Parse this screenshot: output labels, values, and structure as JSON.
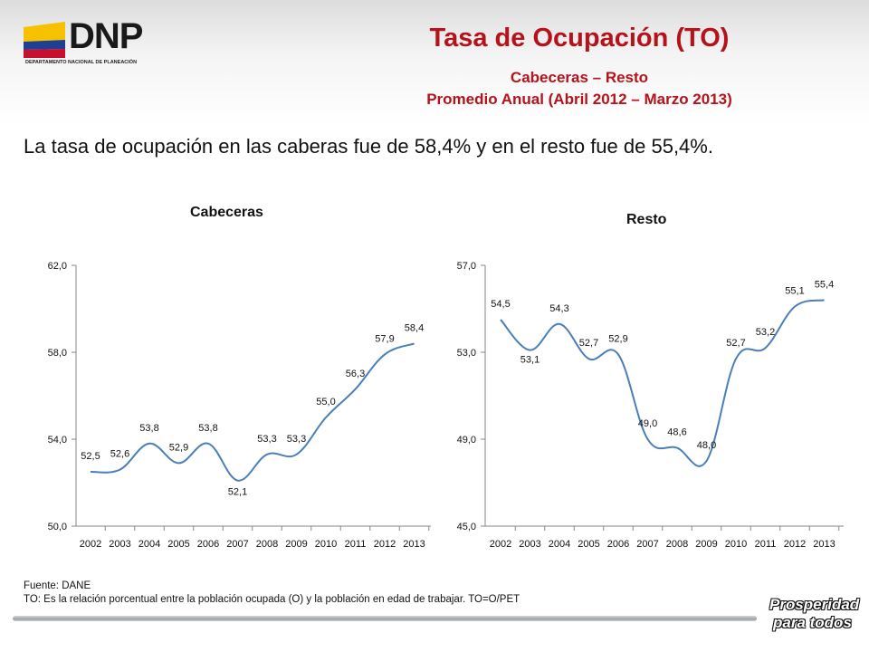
{
  "header": {
    "logo_text": "DNP",
    "logo_subtext": "DEPARTAMENTO NACIONAL DE PLANEACIÓN",
    "title": "Tasa de Ocupación (TO)",
    "subtitle1": "Cabeceras – Resto",
    "subtitle2": "Promedio Anual (Abril 2012 – Marzo 2013)"
  },
  "summary": "La tasa de ocupación en las caberas fue de 58,4% y en el resto fue de 55,4%.",
  "colors": {
    "title": "#b5121b",
    "line": "#4a7ebb",
    "axis": "#868686"
  },
  "chart_data": [
    {
      "type": "line",
      "title": "Cabeceras",
      "categories": [
        "2002",
        "2003",
        "2004",
        "2005",
        "2006",
        "2007",
        "2008",
        "2009",
        "2010",
        "2011",
        "2012",
        "2013"
      ],
      "values": [
        52.5,
        52.6,
        53.8,
        52.9,
        53.8,
        52.1,
        53.3,
        53.3,
        55.0,
        56.3,
        57.9,
        58.4
      ],
      "labels": [
        "52,5",
        "52,6",
        "53,8",
        "52,9",
        "53,8",
        "52,1",
        "53,3",
        "53,3",
        "55,0",
        "56,3",
        "57,9",
        "58,4"
      ],
      "ylim": [
        50,
        62
      ],
      "yticks": [
        50,
        54,
        58,
        62
      ],
      "ytick_labels": [
        "50,0",
        "54,0",
        "58,0",
        "62,0"
      ],
      "grid": false
    },
    {
      "type": "line",
      "title": "Resto",
      "categories": [
        "2002",
        "2003",
        "2004",
        "2005",
        "2006",
        "2007",
        "2008",
        "2009",
        "2010",
        "2011",
        "2012",
        "2013"
      ],
      "values": [
        54.5,
        53.1,
        54.3,
        52.7,
        52.9,
        49.0,
        48.6,
        48.0,
        52.7,
        53.2,
        55.1,
        55.4
      ],
      "labels": [
        "54,5",
        "53,1",
        "54,3",
        "52,7",
        "52,9",
        "49,0",
        "48,6",
        "48,0",
        "52,7",
        "53,2",
        "55,1",
        "55,4"
      ],
      "ylim": [
        45,
        57
      ],
      "yticks": [
        45,
        49,
        53,
        57
      ],
      "ytick_labels": [
        "45,0",
        "49,0",
        "53,0",
        "57,0"
      ],
      "grid": false
    }
  ],
  "footer": {
    "source": "Fuente: DANE",
    "note": "TO: Es la relación porcentual entre la población ocupada (O) y la población  en edad de trabajar. TO=O/PET",
    "brand_line1": "Prosperidad",
    "brand_line2": "para todos"
  }
}
